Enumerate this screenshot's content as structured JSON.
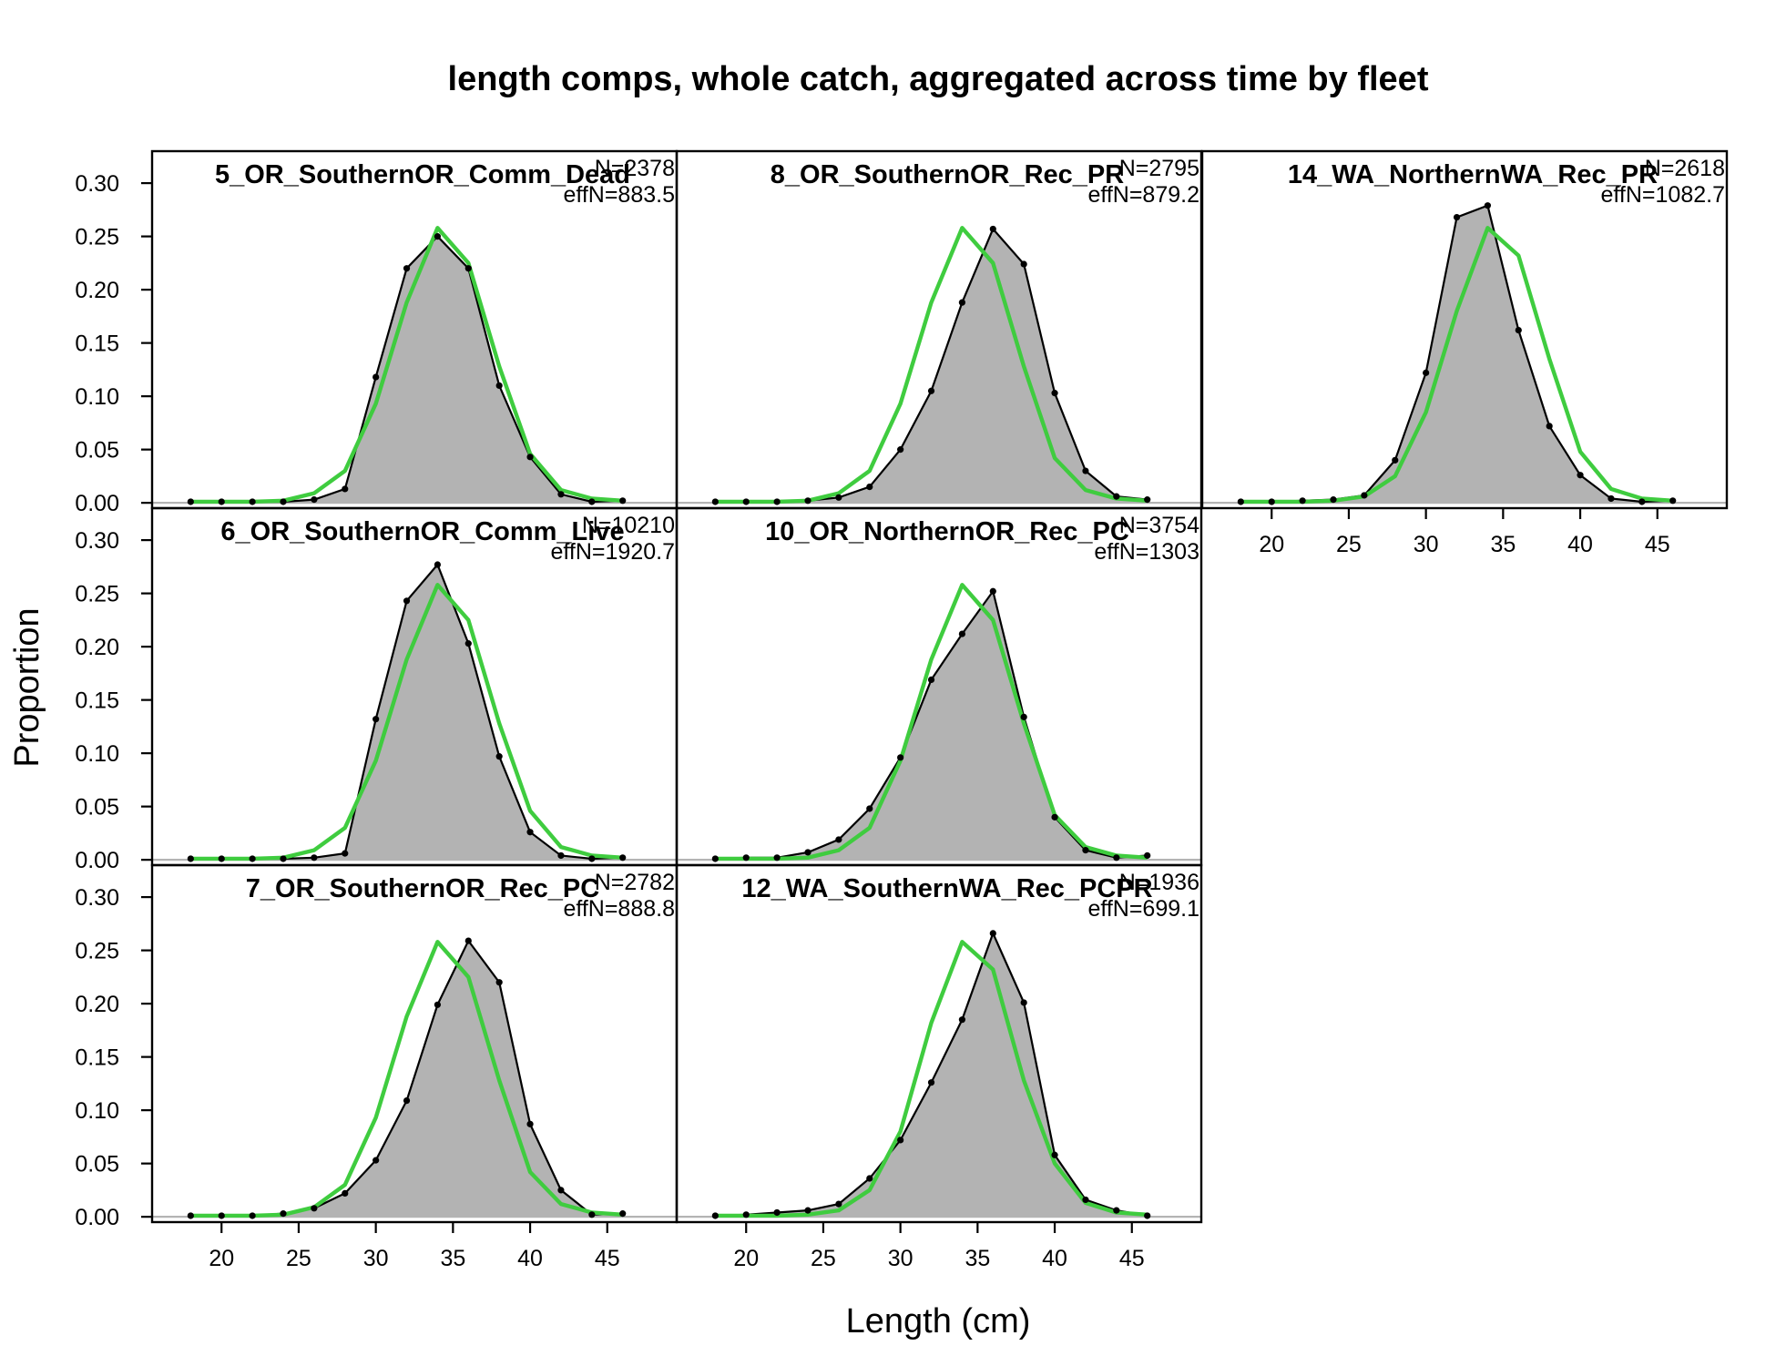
{
  "chart_data": {
    "type": "line",
    "title": "length comps, whole catch, aggregated across time by fleet",
    "xlabel": "Length (cm)",
    "ylabel": "Proportion",
    "xlim": [
      15.5,
      49.5
    ],
    "ylim": [
      -0.005,
      0.33
    ],
    "x_ticks": [
      20,
      25,
      30,
      35,
      40,
      45
    ],
    "y_ticks": [
      0.0,
      0.05,
      0.1,
      0.15,
      0.2,
      0.25,
      0.3
    ],
    "y_tick_labels": [
      "0.00",
      "0.05",
      "0.10",
      "0.15",
      "0.20",
      "0.25",
      "0.30"
    ],
    "x": [
      18,
      20,
      22,
      24,
      26,
      28,
      30,
      32,
      34,
      36,
      38,
      40,
      42,
      44,
      46
    ],
    "grid": false,
    "panels": [
      {
        "title": "5_OR_SouthernOR_Comm_Dead",
        "n_label": "N=2378",
        "effn_label": "effN=883.5",
        "observed": [
          0.001,
          0.001,
          0.001,
          0.001,
          0.003,
          0.013,
          0.118,
          0.22,
          0.25,
          0.22,
          0.11,
          0.043,
          0.008,
          0.001,
          0.002
        ],
        "expected": [
          0.001,
          0.001,
          0.001,
          0.002,
          0.009,
          0.03,
          0.093,
          0.188,
          0.258,
          0.225,
          0.128,
          0.046,
          0.012,
          0.004,
          0.002
        ]
      },
      {
        "title": "8_OR_SouthernOR_Rec_PR",
        "n_label": "N=2795",
        "effn_label": "effN=879.2",
        "observed": [
          0.001,
          0.001,
          0.001,
          0.002,
          0.005,
          0.015,
          0.05,
          0.105,
          0.188,
          0.257,
          0.224,
          0.103,
          0.03,
          0.006,
          0.003
        ],
        "expected": [
          0.001,
          0.001,
          0.001,
          0.002,
          0.009,
          0.03,
          0.093,
          0.188,
          0.258,
          0.225,
          0.128,
          0.042,
          0.012,
          0.004,
          0.002
        ]
      },
      {
        "title": "14_WA_NorthernWA_Rec_PR",
        "n_label": "N=2618",
        "effn_label": "effN=1082.7",
        "observed": [
          0.001,
          0.001,
          0.002,
          0.003,
          0.007,
          0.04,
          0.122,
          0.268,
          0.279,
          0.162,
          0.072,
          0.026,
          0.004,
          0.001,
          0.002
        ],
        "expected": [
          0.001,
          0.001,
          0.001,
          0.002,
          0.006,
          0.025,
          0.085,
          0.18,
          0.258,
          0.232,
          0.135,
          0.048,
          0.013,
          0.004,
          0.002
        ]
      },
      {
        "title": "6_OR_SouthernOR_Comm_Live",
        "n_label": "N=10210",
        "effn_label": "effN=1920.7",
        "observed": [
          0.001,
          0.001,
          0.001,
          0.001,
          0.002,
          0.006,
          0.132,
          0.243,
          0.277,
          0.203,
          0.097,
          0.026,
          0.004,
          0.001,
          0.002
        ],
        "expected": [
          0.001,
          0.001,
          0.001,
          0.002,
          0.009,
          0.03,
          0.093,
          0.188,
          0.258,
          0.225,
          0.128,
          0.046,
          0.012,
          0.004,
          0.002
        ]
      },
      {
        "title": "10_OR_NorthernOR_Rec_PC",
        "n_label": "N=3754",
        "effn_label": "effN=1303",
        "observed": [
          0.001,
          0.002,
          0.002,
          0.007,
          0.019,
          0.048,
          0.096,
          0.169,
          0.212,
          0.252,
          0.134,
          0.04,
          0.009,
          0.002,
          0.004
        ],
        "expected": [
          0.001,
          0.001,
          0.001,
          0.002,
          0.009,
          0.03,
          0.093,
          0.188,
          0.258,
          0.225,
          0.128,
          0.042,
          0.012,
          0.004,
          0.002
        ]
      },
      {
        "title": "7_OR_SouthernOR_Rec_PC",
        "n_label": "N=2782",
        "effn_label": "effN=888.8",
        "observed": [
          0.001,
          0.001,
          0.001,
          0.003,
          0.008,
          0.022,
          0.053,
          0.109,
          0.199,
          0.259,
          0.22,
          0.087,
          0.025,
          0.002,
          0.003
        ],
        "expected": [
          0.001,
          0.001,
          0.001,
          0.002,
          0.009,
          0.03,
          0.093,
          0.188,
          0.258,
          0.225,
          0.128,
          0.042,
          0.012,
          0.004,
          0.002
        ]
      },
      {
        "title": "12_WA_SouthernWA_Rec_PCPR",
        "n_label": "N=1936",
        "effn_label": "effN=699.1",
        "observed": [
          0.001,
          0.002,
          0.004,
          0.006,
          0.012,
          0.036,
          0.072,
          0.126,
          0.185,
          0.266,
          0.201,
          0.058,
          0.016,
          0.006,
          0.001
        ],
        "expected": [
          0.001,
          0.001,
          0.001,
          0.002,
          0.006,
          0.025,
          0.08,
          0.182,
          0.258,
          0.232,
          0.128,
          0.05,
          0.013,
          0.004,
          0.002
        ]
      }
    ]
  }
}
